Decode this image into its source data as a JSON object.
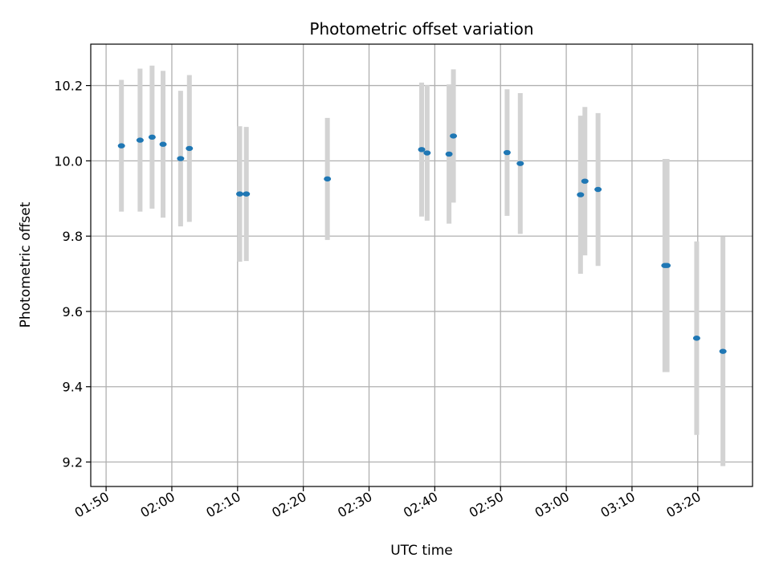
{
  "chart_data": {
    "type": "scatter",
    "title": "Photometric offset variation",
    "xlabel": "UTC time",
    "ylabel": "Photometric offset",
    "x_tick_labels": [
      "01:50",
      "02:00",
      "02:10",
      "02:20",
      "02:30",
      "02:40",
      "02:50",
      "03:00",
      "03:10",
      "03:20"
    ],
    "y_tick_labels": [
      "9.2",
      "9.4",
      "9.6",
      "9.8",
      "10.0",
      "10.2"
    ],
    "xlim": [
      "01:47:40",
      "03:28:20"
    ],
    "ylim": [
      9.135,
      10.31
    ],
    "grid": true,
    "legend": "none",
    "colors": {
      "point": "#1f77b4",
      "errorbar": "#d3d3d3",
      "grid": "#b0b0b0"
    },
    "series": [
      {
        "x": [
          "01:52:20",
          "01:55:10",
          "01:57:00",
          "01:58:40",
          "02:01:20",
          "02:02:40",
          "02:10:20",
          "02:11:20",
          "02:23:40",
          "02:38:00",
          "02:38:50",
          "02:42:10",
          "02:42:50",
          "02:51:00",
          "02:53:00",
          "03:02:10",
          "03:02:50",
          "03:04:50",
          "03:15:00",
          "03:15:20",
          "03:19:50",
          "03:23:50"
        ],
        "y": [
          10.04,
          10.055,
          10.063,
          10.044,
          10.006,
          10.033,
          9.912,
          9.912,
          9.952,
          10.03,
          10.021,
          10.018,
          10.066,
          10.022,
          9.993,
          9.91,
          9.946,
          9.924,
          9.722,
          9.722,
          9.529,
          9.494
        ],
        "yerr": [
          0.175,
          0.19,
          0.19,
          0.195,
          0.18,
          0.195,
          0.18,
          0.178,
          0.162,
          0.178,
          0.18,
          0.185,
          0.177,
          0.168,
          0.187,
          0.21,
          0.197,
          0.203,
          0.283,
          0.283,
          0.257,
          0.305
        ]
      }
    ]
  }
}
